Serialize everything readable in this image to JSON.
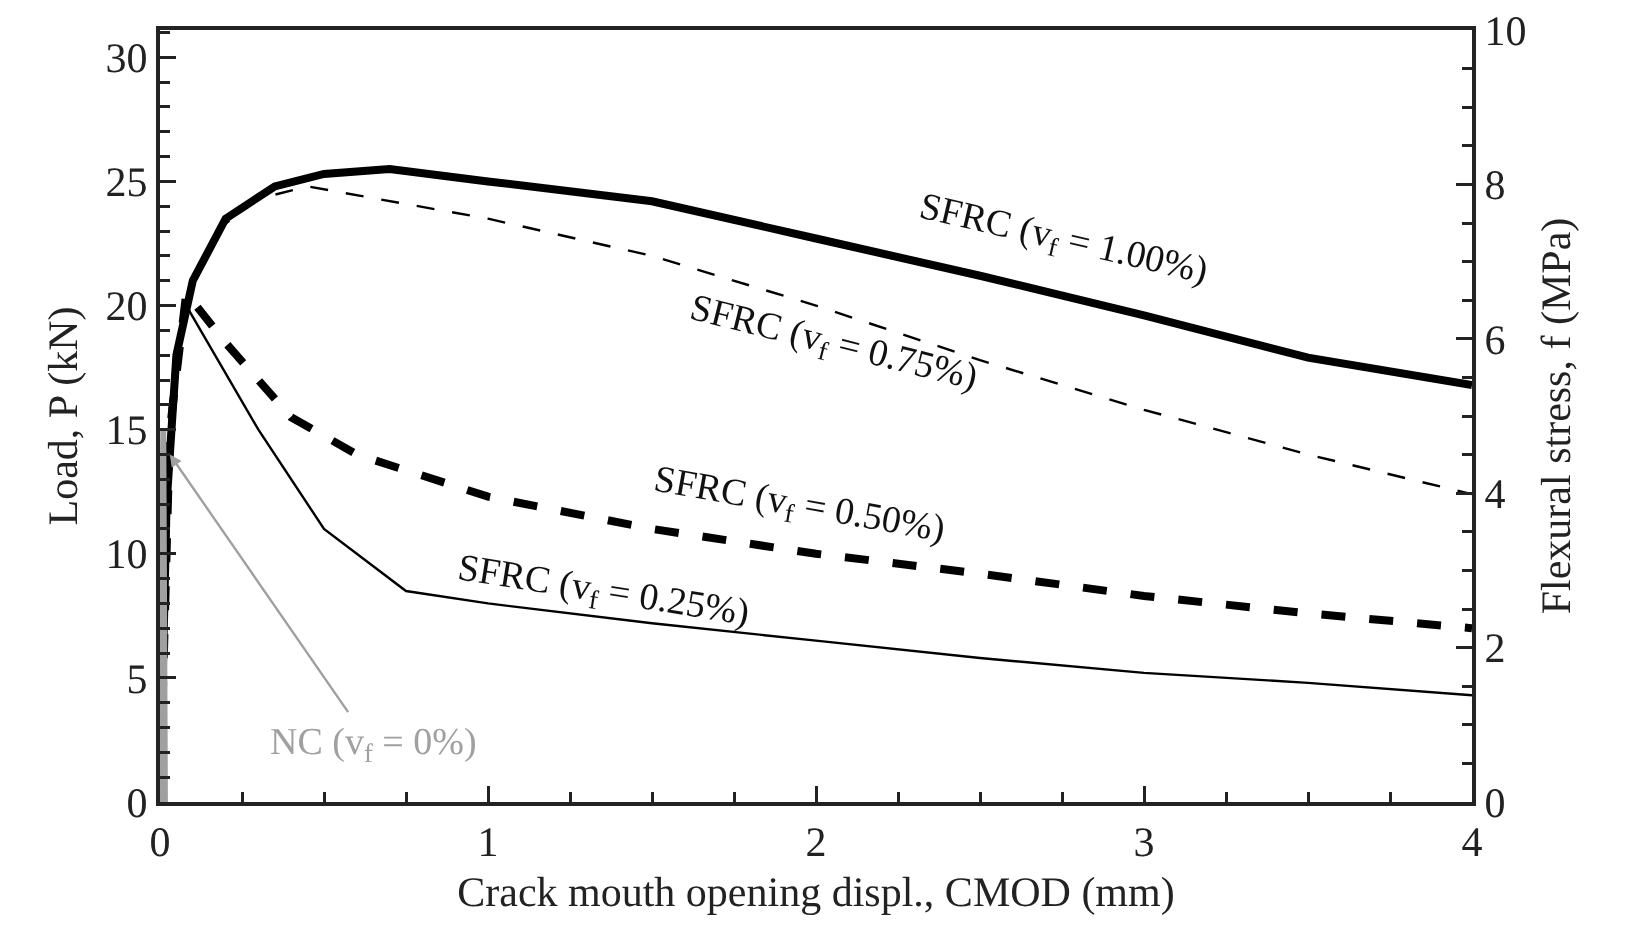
{
  "chart_data": {
    "type": "line",
    "xlabel": "Crack mouth opening displ., CMOD (mm)",
    "ylabel": "Load, P (kN)",
    "y2label": "Flexural stress, f (MPa)",
    "xlim": [
      0,
      4
    ],
    "xticks": [
      0,
      1,
      2,
      3,
      4
    ],
    "ylim": [
      0,
      31.1
    ],
    "yticks": [
      0,
      5,
      10,
      15,
      20,
      25,
      30
    ],
    "y2lim": [
      0,
      10
    ],
    "y2ticks": [
      0,
      2,
      4,
      6,
      8,
      10
    ],
    "grid": false,
    "legend": false,
    "marker": "none",
    "series": [
      {
        "name": "SFRC (v$_{f}$ = 1.00%)",
        "color": "#000000",
        "line_style": "solid",
        "x": [
          0,
          0.02,
          0.05,
          0.1,
          0.2,
          0.35,
          0.5,
          0.7,
          1.0,
          1.5,
          2,
          2.5,
          3,
          3.5,
          4
        ],
        "values": [
          0,
          12,
          18,
          21,
          23.5,
          24.8,
          25.3,
          25.5,
          25.0,
          24.2,
          22.7,
          21.2,
          19.6,
          17.9,
          16.8
        ]
      },
      {
        "name": "SFRC (v$_{f}$ = 0.75%)",
        "color": "#000000",
        "line_style": "dashed",
        "x": [
          0,
          0.02,
          0.05,
          0.1,
          0.2,
          0.3,
          0.45,
          1,
          1.5,
          2,
          2.5,
          3,
          3.5,
          4
        ],
        "values": [
          0,
          12,
          18,
          21,
          23.3,
          24.3,
          24.8,
          23.5,
          22,
          20,
          17.8,
          15.8,
          14,
          12.4
        ]
      },
      {
        "name": "SFRC (v$_{f}$ = 0.50%)",
        "color": "#000000",
        "line_style": "dashed",
        "x": [
          0,
          0.03,
          0.08,
          0.2,
          0.4,
          0.6,
          1,
          1.5,
          2,
          2.5,
          3,
          3.5,
          4
        ],
        "values": [
          0,
          15,
          20.5,
          18.5,
          15.5,
          14,
          12.3,
          11,
          10,
          9.2,
          8.3,
          7.6,
          7.0
        ]
      },
      {
        "name": "SFRC (v$_{f}$ = 0.25%)",
        "color": "#000000",
        "line_style": "solid",
        "x": [
          0,
          0.03,
          0.08,
          0.3,
          0.5,
          0.75,
          1,
          1.5,
          2,
          2.5,
          3,
          3.5,
          4
        ],
        "values": [
          0,
          16,
          20,
          15,
          11,
          8.5,
          8.0,
          7.2,
          6.5,
          5.8,
          5.2,
          4.8,
          4.3
        ]
      },
      {
        "name": "NC (v$_{f}$ = 0%)",
        "color": "#a0a0a0",
        "line_style": "solid",
        "x": [
          0,
          0.01,
          0.015
        ],
        "values": [
          0,
          15,
          0
        ]
      }
    ]
  }
}
